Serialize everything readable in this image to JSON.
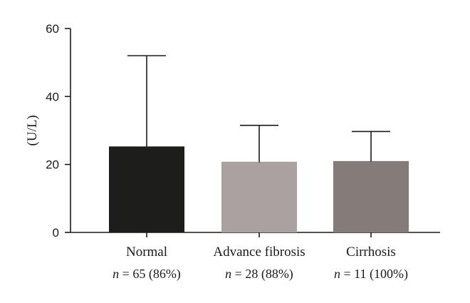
{
  "chart_data": {
    "type": "bar",
    "categories": [
      "Normal",
      "Advance fibrosis",
      "Cirrhosis"
    ],
    "n_labels": [
      {
        "n_symbol": "n",
        "text": " = 65 (86%)"
      },
      {
        "n_symbol": "n",
        "text": " = 28 (88%)"
      },
      {
        "n_symbol": "n",
        "text": " = 11 (100%)"
      }
    ],
    "values": [
      25.3,
      20.8,
      21.0
    ],
    "error_upper": [
      52.0,
      31.5,
      29.7
    ],
    "colors": [
      "#1d1d1b",
      "#a9a2a1",
      "#857c79"
    ],
    "ylabel": "(U/L)",
    "xlabel": "",
    "title": "",
    "ylim": [
      0,
      60
    ],
    "yticks": [
      0,
      20,
      40,
      60
    ],
    "grid": false
  }
}
